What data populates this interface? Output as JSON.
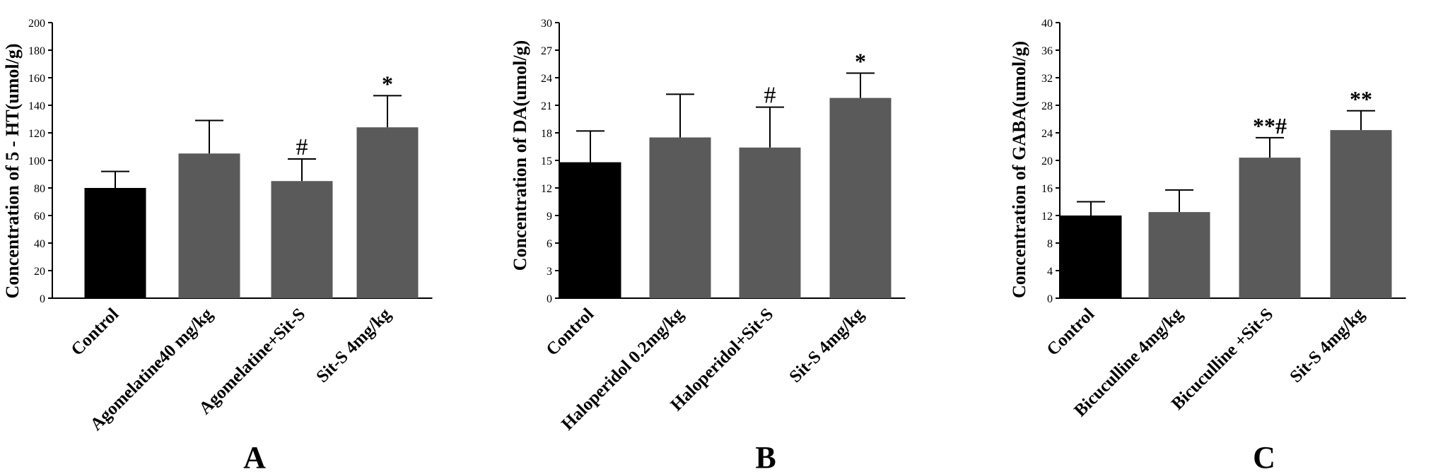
{
  "chart_data": [
    {
      "type": "bar",
      "panel": "A",
      "ylabel": "Concentration of 5 - HT(umol/g)",
      "ylim": [
        0,
        200
      ],
      "yticks": [
        0,
        20,
        40,
        60,
        80,
        100,
        120,
        140,
        160,
        180,
        200
      ],
      "categories": [
        "Control",
        "Agomelatine40 mg/kg",
        "Agomelatine+Sit-S",
        "Sit-S 4mg/kg"
      ],
      "values": [
        80,
        105,
        85,
        124
      ],
      "errors": [
        12,
        24,
        16,
        23
      ],
      "annotations": [
        "",
        "",
        "#",
        "*"
      ],
      "bar_colors": [
        "#000000",
        "#5a5a5a",
        "#5a5a5a",
        "#5a5a5a"
      ]
    },
    {
      "type": "bar",
      "panel": "B",
      "ylabel": "Concentration of DA(umol/g)",
      "ylim": [
        0,
        30
      ],
      "yticks": [
        0,
        3,
        6,
        9,
        12,
        15,
        18,
        21,
        24,
        27,
        30
      ],
      "categories": [
        "Control",
        "Haloperidol 0.2mg/kg",
        "Haloperidol+Sit-S",
        "Sit-S 4mg/kg"
      ],
      "values": [
        14.8,
        17.5,
        16.4,
        21.8
      ],
      "errors": [
        3.4,
        4.7,
        4.4,
        2.7
      ],
      "annotations": [
        "",
        "",
        "#",
        "*"
      ],
      "bar_colors": [
        "#000000",
        "#5a5a5a",
        "#5a5a5a",
        "#5a5a5a"
      ]
    },
    {
      "type": "bar",
      "panel": "C",
      "ylabel": "Concentration of GABA(umol/g)",
      "ylim": [
        0,
        40
      ],
      "yticks": [
        0,
        4,
        8,
        12,
        16,
        20,
        24,
        28,
        32,
        36,
        40
      ],
      "categories": [
        "Control",
        "Bicuculline 4mg/kg",
        "Bicuculline +Sit-S",
        "Sit-S 4mg/kg"
      ],
      "values": [
        12,
        12.5,
        20.4,
        24.4
      ],
      "errors": [
        2,
        3.2,
        2.9,
        2.8
      ],
      "annotations": [
        "",
        "",
        "**#",
        "**"
      ],
      "bar_colors": [
        "#000000",
        "#5a5a5a",
        "#5a5a5a",
        "#5a5a5a"
      ]
    }
  ]
}
